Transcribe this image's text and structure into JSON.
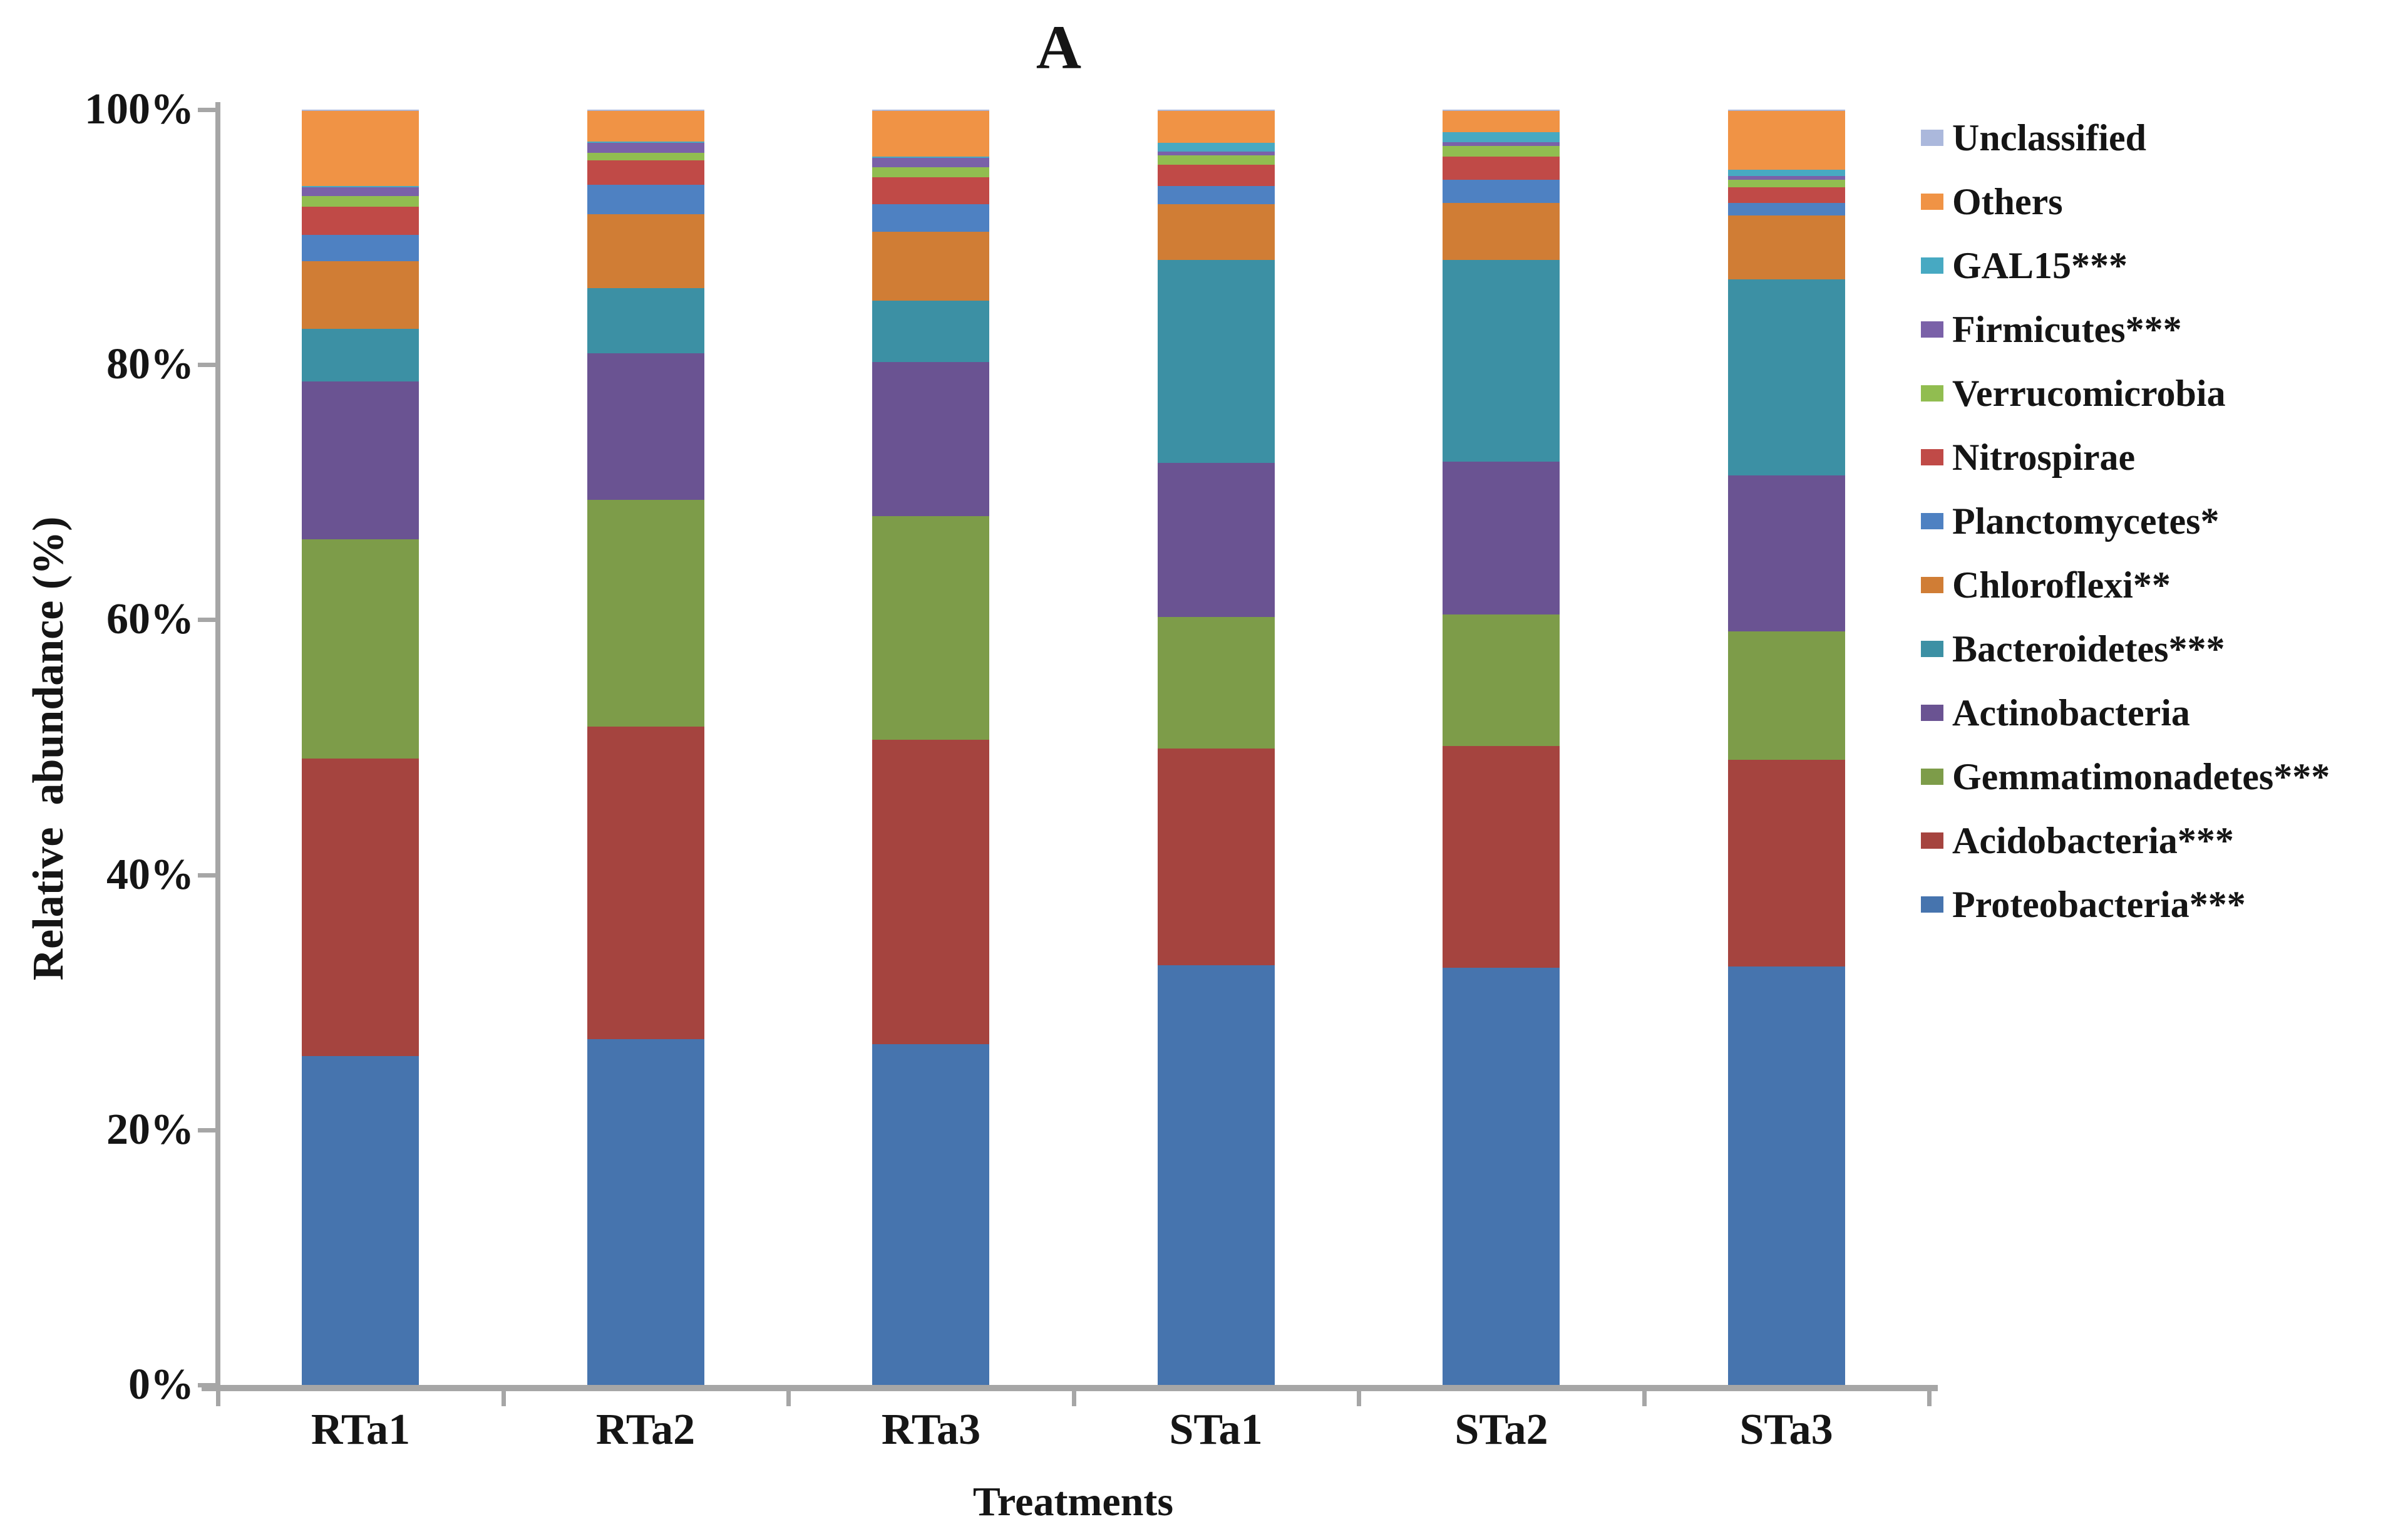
{
  "figure": {
    "panel_label": "A",
    "background": "#ffffff",
    "axis_color": "#a6a6a6",
    "text_color": "#151515"
  },
  "axes": {
    "y_title": "Relative  abundance (%)",
    "x_title": "Treatments",
    "y_ticks": [
      "0%",
      "20%",
      "40%",
      "60%",
      "80%",
      "100%"
    ],
    "x_categories": [
      "RTa1",
      "RTa2",
      "RTa3",
      "STa1",
      "STa2",
      "STa3"
    ]
  },
  "chart_data": {
    "type": "bar",
    "stacked": true,
    "normalized": "100%-stacked",
    "title": "A",
    "xlabel": "Treatments",
    "ylabel": "Relative abundance (%)",
    "ylim": [
      0,
      100
    ],
    "grid": false,
    "legend_position": "right",
    "legend_order": "reverse of stack (top legend entry = top of stack)",
    "categories": [
      "RTa1",
      "RTa2",
      "RTa3",
      "STa1",
      "STa2",
      "STa3"
    ],
    "series": [
      {
        "name": "Proteobacteria***",
        "color": "#4674AE",
        "values": [
          25.8,
          27.1,
          26.7,
          32.9,
          32.7,
          32.8
        ]
      },
      {
        "name": "Acidobacteria***",
        "color": "#A5443F",
        "values": [
          23.3,
          24.5,
          23.9,
          17.0,
          17.4,
          16.2
        ]
      },
      {
        "name": "Gemmatimonadetes***",
        "color": "#7D9C49",
        "values": [
          17.2,
          17.8,
          17.5,
          10.3,
          10.3,
          10.1
        ]
      },
      {
        "name": "Actinobacteria",
        "color": "#6A5392",
        "values": [
          12.4,
          11.5,
          12.1,
          12.1,
          12.0,
          12.2
        ]
      },
      {
        "name": "Bacteroidetes***",
        "color": "#3C90A4",
        "values": [
          4.1,
          5.1,
          4.8,
          15.9,
          15.8,
          15.4
        ]
      },
      {
        "name": "Chloroflexi**",
        "color": "#D07D35",
        "values": [
          5.3,
          5.8,
          5.4,
          4.4,
          4.5,
          5.0
        ]
      },
      {
        "name": "Planctomycetes*",
        "color": "#4E81C2",
        "values": [
          2.1,
          2.3,
          2.2,
          1.4,
          1.8,
          1.0
        ]
      },
      {
        "name": "Nitrospirae",
        "color": "#C04A47",
        "values": [
          2.2,
          1.9,
          2.1,
          1.7,
          1.8,
          1.2
        ]
      },
      {
        "name": "Verrucomicrobia",
        "color": "#91BD50",
        "values": [
          0.8,
          0.6,
          0.8,
          0.7,
          0.85,
          0.6
        ]
      },
      {
        "name": "Firmicutes***",
        "color": "#7A61A8",
        "values": [
          0.7,
          0.8,
          0.7,
          0.3,
          0.3,
          0.3
        ]
      },
      {
        "name": "GAL15***",
        "color": "#47A9C2",
        "values": [
          0.1,
          0.1,
          0.1,
          0.7,
          0.8,
          0.5
        ]
      },
      {
        "name": "Others",
        "color": "#F09345",
        "values": [
          5.9,
          2.4,
          3.6,
          2.5,
          1.65,
          4.6
        ]
      },
      {
        "name": "Unclassified",
        "color": "#ABB8DC",
        "values": [
          0.1,
          0.1,
          0.1,
          0.1,
          0.1,
          0.1
        ]
      }
    ]
  }
}
